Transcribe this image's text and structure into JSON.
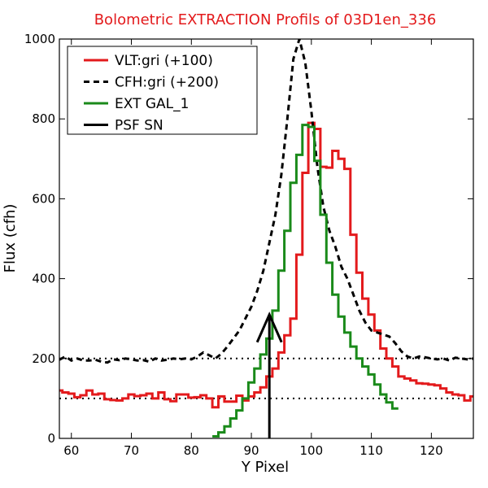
{
  "chart_data": {
    "type": "line",
    "title": "Bolometric EXTRACTION Profils of 03D1en_336",
    "title_color": "#e31a1c",
    "xlabel": "Y Pixel",
    "ylabel": "Flux (cfh)",
    "xlim": [
      58,
      127
    ],
    "ylim": [
      0,
      1000
    ],
    "xticks": [
      60,
      70,
      80,
      90,
      100,
      110,
      120
    ],
    "yticks": [
      0,
      200,
      400,
      600,
      800,
      1000
    ],
    "grid": false,
    "legend_position": "top-left",
    "reference_lines": [
      {
        "y": 100,
        "style": "dotted",
        "color": "#000000"
      },
      {
        "y": 200,
        "style": "dotted",
        "color": "#000000"
      }
    ],
    "series": [
      {
        "name": "VLT:gri (+100)",
        "color": "#e31a1c",
        "style": "steps",
        "x": [
          58,
          59,
          60,
          61,
          62,
          63,
          64,
          65,
          66,
          67,
          68,
          69,
          70,
          71,
          72,
          73,
          74,
          75,
          76,
          77,
          78,
          79,
          80,
          81,
          82,
          83,
          84,
          85,
          86,
          87,
          88,
          89,
          90,
          91,
          92,
          93,
          94,
          95,
          96,
          97,
          98,
          99,
          100,
          101,
          102,
          103,
          104,
          105,
          106,
          107,
          108,
          109,
          110,
          111,
          112,
          113,
          114,
          115,
          116,
          117,
          118,
          119,
          120,
          121,
          122,
          123,
          124,
          125,
          126,
          127
        ],
        "values": [
          120,
          115,
          112,
          103,
          108,
          120,
          110,
          112,
          98,
          96,
          95,
          100,
          110,
          106,
          108,
          112,
          100,
          115,
          98,
          93,
          110,
          110,
          102,
          103,
          108,
          100,
          78,
          105,
          92,
          92,
          107,
          95,
          105,
          115,
          128,
          155,
          175,
          215,
          258,
          300,
          460,
          665,
          790,
          775,
          680,
          678,
          720,
          700,
          675,
          510,
          415,
          350,
          310,
          270,
          225,
          200,
          180,
          155,
          150,
          145,
          138,
          137,
          135,
          133,
          125,
          115,
          110,
          108,
          95,
          105
        ]
      },
      {
        "name": "CFH:gri (+200)",
        "color": "#000000",
        "style": "dashed",
        "x": [
          58,
          59,
          60,
          61,
          62,
          63,
          64,
          65,
          66,
          67,
          68,
          69,
          70,
          71,
          72,
          73,
          74,
          75,
          76,
          77,
          78,
          79,
          80,
          81,
          82,
          83,
          84,
          85,
          86,
          87,
          88,
          89,
          90,
          91,
          92,
          93,
          94,
          95,
          96,
          97,
          98,
          99,
          100,
          101,
          102,
          103,
          104,
          105,
          106,
          107,
          108,
          109,
          110,
          111,
          112,
          113,
          114,
          115,
          116,
          117,
          118,
          119,
          120,
          121,
          122,
          123,
          124,
          125,
          126,
          127
        ],
        "values": [
          197,
          205,
          195,
          200,
          195,
          195,
          197,
          192,
          190,
          198,
          196,
          200,
          198,
          195,
          196,
          192,
          200,
          195,
          197,
          200,
          198,
          200,
          198,
          205,
          215,
          208,
          200,
          212,
          230,
          250,
          270,
          300,
          330,
          370,
          420,
          490,
          560,
          660,
          800,
          950,
          1000,
          940,
          820,
          680,
          580,
          520,
          480,
          430,
          400,
          360,
          320,
          290,
          270,
          265,
          260,
          255,
          238,
          218,
          205,
          200,
          205,
          203,
          200,
          198,
          200,
          195,
          202,
          200,
          198,
          200
        ]
      },
      {
        "name": "EXT GAL_1",
        "color": "#1a8a1a",
        "style": "steps",
        "x": [
          84,
          85,
          86,
          87,
          88,
          89,
          90,
          91,
          92,
          93,
          94,
          95,
          96,
          97,
          98,
          99,
          100,
          101,
          102,
          103,
          104,
          105,
          106,
          107,
          108,
          109,
          110,
          111,
          112,
          113,
          114
        ],
        "values": [
          5,
          15,
          30,
          50,
          70,
          100,
          140,
          175,
          210,
          250,
          320,
          420,
          520,
          640,
          710,
          785,
          780,
          695,
          560,
          440,
          360,
          305,
          265,
          230,
          200,
          180,
          160,
          135,
          110,
          90,
          75
        ]
      }
    ],
    "annotations": [
      {
        "name": "PSF SN",
        "type": "arrow",
        "color": "#000000",
        "x": 93,
        "y_base": 0,
        "y_tip": 310
      }
    ]
  }
}
